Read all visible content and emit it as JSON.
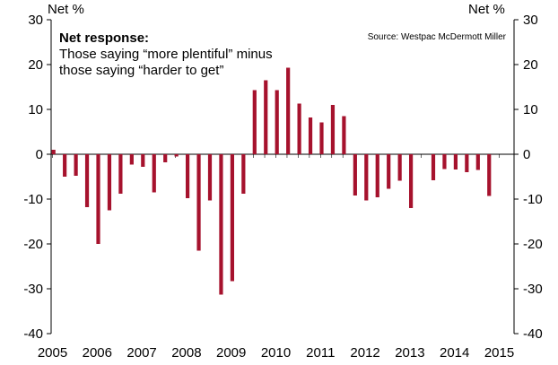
{
  "chart_data": {
    "type": "bar",
    "ylim": [
      -40,
      30
    ],
    "yticks": [
      30,
      20,
      10,
      0,
      -10,
      -20,
      -30,
      -40
    ],
    "x_tick_labels": [
      "2005",
      "2006",
      "2007",
      "2008",
      "2009",
      "2010",
      "2011",
      "2012",
      "2013",
      "2014",
      "2015"
    ],
    "y_unit_left": "Net %",
    "y_unit_right": "Net %",
    "annotation_title": "Net response:",
    "annotation_lines": [
      "Those saying “more plentiful” minus",
      "those saying “harder to get”"
    ],
    "source": "Source: Westpac McDermott Miller",
    "bar_color": "#a6122d",
    "series": [
      {
        "values": [
          1,
          -5,
          -4.8,
          -11.8,
          -20,
          -12.5,
          -8.8,
          -2.3,
          -2.8,
          -8.5,
          -1.8,
          -0.5,
          -9.8,
          -21.5,
          -10.3,
          -31.3,
          -28.3,
          -8.8,
          14.3,
          16.5,
          14.3,
          19.3,
          11.3,
          8.2,
          7.1,
          11,
          8.5,
          -9.2,
          -10.3,
          -9.6,
          -7.7,
          -5.9,
          -12,
          0,
          -5.8,
          -3.3,
          -3.4,
          -4,
          -3.5,
          -9.3
        ]
      }
    ]
  }
}
